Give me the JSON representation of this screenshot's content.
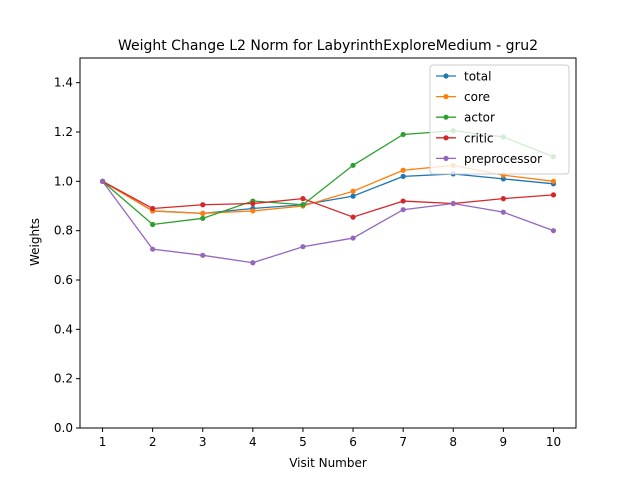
{
  "chart_data": {
    "type": "line",
    "title": "Weight Change L2 Norm for LabyrinthExploreMedium - gru2",
    "xlabel": "Visit Number",
    "ylabel": "Weights",
    "x": [
      1,
      2,
      3,
      4,
      5,
      6,
      7,
      8,
      9,
      10
    ],
    "xlim": [
      0.55,
      10.45
    ],
    "ylim": [
      0.0,
      1.5
    ],
    "yticks": [
      0.0,
      0.2,
      0.4,
      0.6,
      0.8,
      1.0,
      1.2,
      1.4
    ],
    "ytick_labels": [
      "0.0",
      "0.2",
      "0.4",
      "0.6",
      "0.8",
      "1.0",
      "1.2",
      "1.4"
    ],
    "xtick_labels": [
      "1",
      "2",
      "3",
      "4",
      "5",
      "6",
      "7",
      "8",
      "9",
      "10"
    ],
    "grid": false,
    "legend_position": "top-right",
    "series": [
      {
        "name": "total",
        "color": "#1f77b4",
        "values": [
          1.0,
          0.88,
          0.87,
          0.89,
          0.905,
          0.94,
          1.02,
          1.03,
          1.01,
          0.99
        ]
      },
      {
        "name": "core",
        "color": "#ff7f0e",
        "values": [
          1.0,
          0.88,
          0.87,
          0.88,
          0.9,
          0.96,
          1.045,
          1.065,
          1.025,
          1.0
        ]
      },
      {
        "name": "actor",
        "color": "#2ca02c",
        "values": [
          1.0,
          0.825,
          0.85,
          0.92,
          0.905,
          1.065,
          1.19,
          1.205,
          1.18,
          1.1
        ]
      },
      {
        "name": "critic",
        "color": "#d62728",
        "values": [
          1.0,
          0.89,
          0.905,
          0.91,
          0.93,
          0.855,
          0.92,
          0.91,
          0.93,
          0.945
        ]
      },
      {
        "name": "preprocessor",
        "color": "#9467bd",
        "values": [
          1.0,
          0.725,
          0.7,
          0.67,
          0.735,
          0.77,
          0.885,
          0.91,
          0.875,
          0.8
        ]
      }
    ]
  }
}
